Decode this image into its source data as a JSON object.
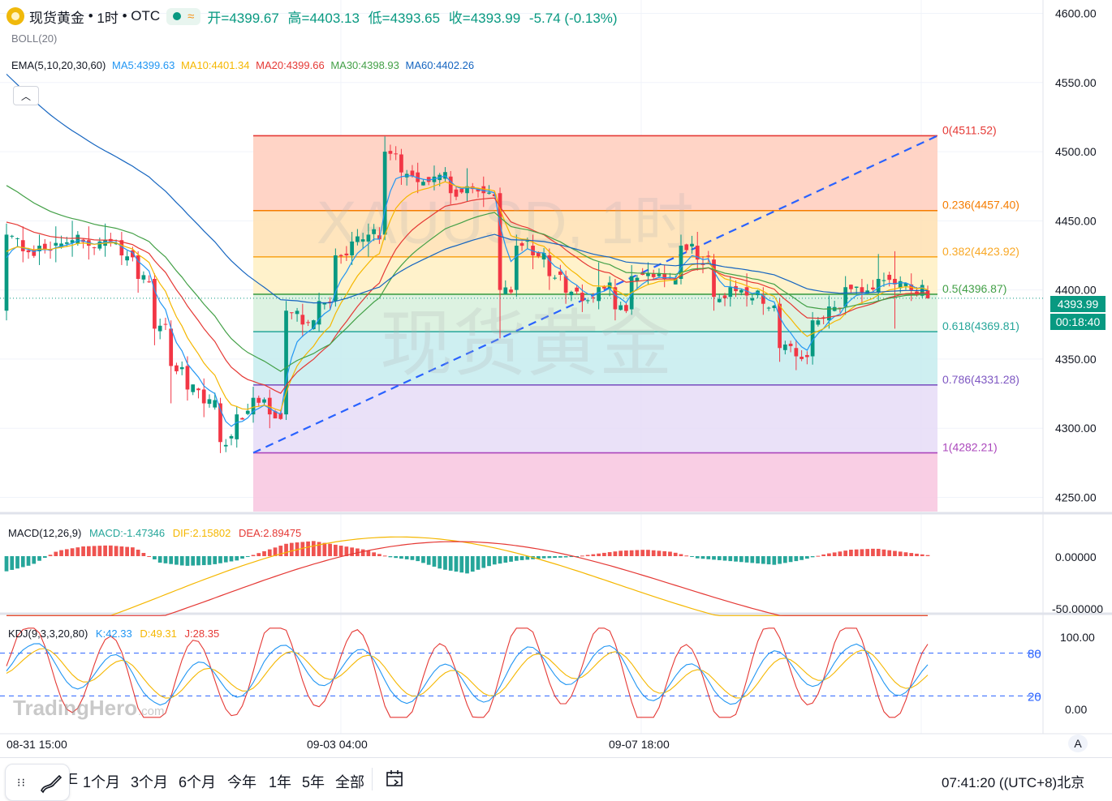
{
  "header": {
    "symbol": "现货黄金",
    "interval": "1时",
    "exchange": "OTC",
    "ohlc": {
      "open_label": "开=4399.67",
      "high_label": "高=4403.13",
      "low_label": "低=4393.65",
      "close_label": "收=4393.99",
      "change_label": "-5.74 (-0.13%)"
    },
    "boll_label": "BOLL(20)",
    "ema_label": "EMA(5,10,20,30,60)",
    "ma": [
      {
        "label": "MA5:4399.63",
        "color": "#2196f3"
      },
      {
        "label": "MA10:4401.34",
        "color": "#f5b700"
      },
      {
        "label": "MA20:4399.66",
        "color": "#e53935"
      },
      {
        "label": "MA30:4398.93",
        "color": "#43a047"
      },
      {
        "label": "MA60:4402.26",
        "color": "#1565c0"
      }
    ]
  },
  "watermark": {
    "line1": "XAUUSD, 1时",
    "line2": "现货黄金",
    "brand": "TradingHero",
    "brand_suffix": ".com"
  },
  "price_axis": {
    "ticks": [
      "4600.00",
      "4550.00",
      "4500.00",
      "4450.00",
      "4400.00",
      "4350.00",
      "4300.00",
      "4250.00"
    ],
    "current_price": "4393.99",
    "countdown": "00:18:40"
  },
  "fib": [
    {
      "label": "0(4511.52)",
      "price": 4511.52,
      "color": "#e53935"
    },
    {
      "label": "0.236(4457.40)",
      "price": 4457.4,
      "color": "#f57c00"
    },
    {
      "label": "0.382(4423.92)",
      "price": 4423.92,
      "color": "#f9a825"
    },
    {
      "label": "0.5(4396.87)",
      "price": 4396.87,
      "color": "#43a047"
    },
    {
      "label": "0.618(4369.81)",
      "price": 4369.81,
      "color": "#26a69a"
    },
    {
      "label": "0.786(4331.28)",
      "price": 4331.28,
      "color": "#7e57c2"
    },
    {
      "label": "1(4282.21)",
      "price": 4282.21,
      "color": "#ab47bc"
    }
  ],
  "macd": {
    "title": "MACD(12,26,9)",
    "macd_label": "MACD:-1.47346",
    "dif_label": "DIF:2.15802",
    "dea_label": "DEA:2.89475",
    "ticks": [
      "0.00000",
      "-50.00000"
    ]
  },
  "kdj": {
    "title": "KDJ(9,3,3,20,80)",
    "k_label": "K:42.33",
    "d_label": "D:49.31",
    "j_label": "J:28.35",
    "ticks": [
      "100.00",
      "0.00"
    ],
    "level_80": "80",
    "level_20": "20"
  },
  "time_axis": {
    "ticks": [
      "08-31 15:00",
      "09-03 04:00",
      "09-07 18:00"
    ]
  },
  "bottom_bar": {
    "ranges": [
      "1个月",
      "3个月",
      "6个月",
      "今年",
      "1年",
      "5年",
      "全部"
    ],
    "partial_left": "E",
    "clock": "07:41:20",
    "timezone": "(UTC+8)北京",
    "auto_label": "A"
  },
  "chart_data": [
    {
      "type": "candlestick",
      "symbol": "XAUUSD",
      "interval": "1H",
      "ylim": [
        4245,
        4605
      ],
      "candles_sampled": [
        {
          "i": 0,
          "o": 4385,
          "c": 4440,
          "h": 4448,
          "l": 4378
        },
        {
          "i": 3,
          "o": 4436,
          "c": 4428,
          "h": 4446,
          "l": 4420
        },
        {
          "i": 6,
          "o": 4428,
          "c": 4432,
          "h": 4440,
          "l": 4418
        },
        {
          "i": 9,
          "o": 4432,
          "c": 4434,
          "h": 4446,
          "l": 4420
        },
        {
          "i": 12,
          "o": 4434,
          "c": 4436,
          "h": 4450,
          "l": 4424
        },
        {
          "i": 15,
          "o": 4436,
          "c": 4432,
          "h": 4446,
          "l": 4422
        },
        {
          "i": 18,
          "o": 4432,
          "c": 4436,
          "h": 4448,
          "l": 4424
        },
        {
          "i": 21,
          "o": 4436,
          "c": 4425,
          "h": 4442,
          "l": 4418
        },
        {
          "i": 24,
          "o": 4425,
          "c": 4408,
          "h": 4428,
          "l": 4398
        },
        {
          "i": 27,
          "o": 4408,
          "c": 4372,
          "h": 4412,
          "l": 4360
        },
        {
          "i": 30,
          "o": 4372,
          "c": 4345,
          "h": 4378,
          "l": 4318
        },
        {
          "i": 33,
          "o": 4345,
          "c": 4328,
          "h": 4352,
          "l": 4320
        },
        {
          "i": 36,
          "o": 4328,
          "c": 4318,
          "h": 4336,
          "l": 4308
        },
        {
          "i": 39,
          "o": 4318,
          "c": 4290,
          "h": 4322,
          "l": 4282
        },
        {
          "i": 42,
          "o": 4292,
          "c": 4310,
          "h": 4316,
          "l": 4286
        },
        {
          "i": 45,
          "o": 4310,
          "c": 4322,
          "h": 4330,
          "l": 4304
        },
        {
          "i": 48,
          "o": 4322,
          "c": 4310,
          "h": 4328,
          "l": 4300
        },
        {
          "i": 51,
          "o": 4310,
          "c": 4385,
          "h": 4392,
          "l": 4306
        },
        {
          "i": 54,
          "o": 4382,
          "c": 4375,
          "h": 4390,
          "l": 4366
        },
        {
          "i": 57,
          "o": 4375,
          "c": 4392,
          "h": 4398,
          "l": 4370
        },
        {
          "i": 60,
          "o": 4392,
          "c": 4425,
          "h": 4430,
          "l": 4388
        },
        {
          "i": 63,
          "o": 4425,
          "c": 4435,
          "h": 4442,
          "l": 4418
        },
        {
          "i": 66,
          "o": 4435,
          "c": 4440,
          "h": 4448,
          "l": 4424
        },
        {
          "i": 69,
          "o": 4440,
          "c": 4500,
          "h": 4511,
          "l": 4436
        },
        {
          "i": 72,
          "o": 4498,
          "c": 4485,
          "h": 4502,
          "l": 4476
        },
        {
          "i": 75,
          "o": 4485,
          "c": 4478,
          "h": 4492,
          "l": 4470
        },
        {
          "i": 78,
          "o": 4478,
          "c": 4482,
          "h": 4490,
          "l": 4472
        },
        {
          "i": 81,
          "o": 4482,
          "c": 4470,
          "h": 4486,
          "l": 4462
        },
        {
          "i": 84,
          "o": 4470,
          "c": 4475,
          "h": 4488,
          "l": 4464
        },
        {
          "i": 87,
          "o": 4475,
          "c": 4470,
          "h": 4482,
          "l": 4460
        },
        {
          "i": 90,
          "o": 4470,
          "c": 4400,
          "h": 4474,
          "l": 4365
        },
        {
          "i": 93,
          "o": 4400,
          "c": 4432,
          "h": 4440,
          "l": 4395
        },
        {
          "i": 96,
          "o": 4432,
          "c": 4425,
          "h": 4440,
          "l": 4415
        },
        {
          "i": 99,
          "o": 4425,
          "c": 4410,
          "h": 4430,
          "l": 4400
        },
        {
          "i": 102,
          "o": 4410,
          "c": 4398,
          "h": 4414,
          "l": 4390
        },
        {
          "i": 105,
          "o": 4398,
          "c": 4392,
          "h": 4404,
          "l": 4384
        },
        {
          "i": 108,
          "o": 4392,
          "c": 4402,
          "h": 4420,
          "l": 4386
        },
        {
          "i": 111,
          "o": 4402,
          "c": 4386,
          "h": 4408,
          "l": 4378
        },
        {
          "i": 114,
          "o": 4386,
          "c": 4410,
          "h": 4418,
          "l": 4382
        },
        {
          "i": 117,
          "o": 4410,
          "c": 4412,
          "h": 4420,
          "l": 4404
        },
        {
          "i": 120,
          "o": 4412,
          "c": 4408,
          "h": 4418,
          "l": 4402
        },
        {
          "i": 123,
          "o": 4408,
          "c": 4432,
          "h": 4440,
          "l": 4404
        },
        {
          "i": 126,
          "o": 4432,
          "c": 4422,
          "h": 4442,
          "l": 4414
        },
        {
          "i": 129,
          "o": 4422,
          "c": 4395,
          "h": 4426,
          "l": 4385
        },
        {
          "i": 132,
          "o": 4395,
          "c": 4402,
          "h": 4410,
          "l": 4388
        },
        {
          "i": 135,
          "o": 4402,
          "c": 4396,
          "h": 4412,
          "l": 4388
        },
        {
          "i": 138,
          "o": 4396,
          "c": 4390,
          "h": 4402,
          "l": 4382
        },
        {
          "i": 141,
          "o": 4390,
          "c": 4358,
          "h": 4394,
          "l": 4348
        },
        {
          "i": 144,
          "o": 4358,
          "c": 4352,
          "h": 4364,
          "l": 4342
        },
        {
          "i": 147,
          "o": 4352,
          "c": 4378,
          "h": 4384,
          "l": 4346
        },
        {
          "i": 150,
          "o": 4378,
          "c": 4388,
          "h": 4396,
          "l": 4372
        },
        {
          "i": 153,
          "o": 4388,
          "c": 4402,
          "h": 4410,
          "l": 4382
        },
        {
          "i": 156,
          "o": 4402,
          "c": 4398,
          "h": 4408,
          "l": 4390
        },
        {
          "i": 159,
          "o": 4398,
          "c": 4408,
          "h": 4426,
          "l": 4392
        },
        {
          "i": 162,
          "o": 4408,
          "c": 4404,
          "h": 4428,
          "l": 4372
        },
        {
          "i": 165,
          "o": 4404,
          "c": 4400,
          "h": 4412,
          "l": 4392
        },
        {
          "i": 168,
          "o": 4399.67,
          "c": 4393.99,
          "h": 4403.13,
          "l": 4393.65
        }
      ]
    },
    {
      "type": "fibonacci_retracement",
      "from": {
        "price": 4282.21
      },
      "to": {
        "price": 4511.52
      }
    },
    {
      "type": "bar",
      "name": "MACD histogram",
      "ylim": [
        -55,
        45
      ],
      "values_sampled": [
        -14,
        -8,
        5,
        9,
        10,
        8,
        -6,
        -9,
        -8,
        -4,
        4,
        12,
        14,
        10,
        6,
        -1,
        -4,
        -12,
        -16,
        -8,
        -4,
        -2,
        -1,
        2,
        5,
        6,
        4,
        -2,
        -4,
        -6,
        -8,
        -4,
        2,
        6,
        7,
        4,
        1
      ]
    },
    {
      "type": "line",
      "name": "KDJ",
      "ylim": [
        -15,
        125
      ],
      "levels": [
        80,
        20
      ]
    }
  ]
}
